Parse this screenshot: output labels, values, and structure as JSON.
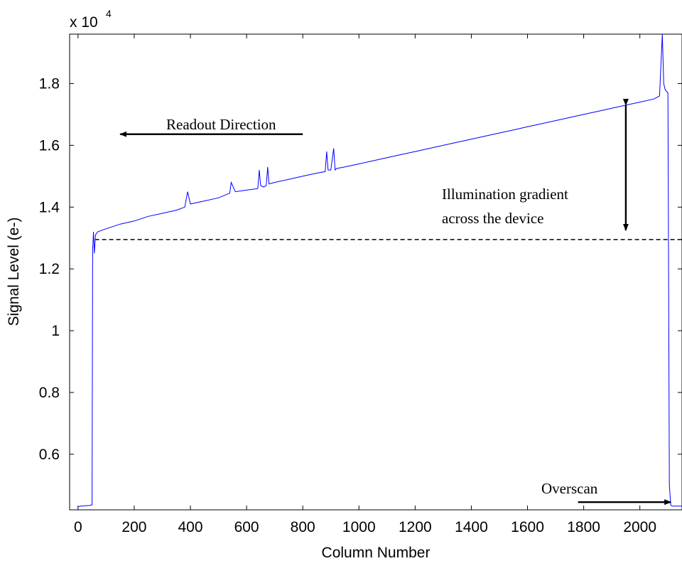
{
  "chart_data": {
    "type": "line",
    "title": "",
    "xlabel": "Column Number",
    "ylabel": "Signal Level (e-)",
    "exponent_label": {
      "base": "x 10",
      "power": "4"
    },
    "xlim": [
      -30,
      2150
    ],
    "ylim": [
      0.42,
      1.96
    ],
    "x_ticks": [
      0,
      200,
      400,
      600,
      800,
      1000,
      1200,
      1400,
      1600,
      1800,
      2000
    ],
    "x_tick_labels": [
      "0",
      "200",
      "400",
      "600",
      "800",
      "1000",
      "1200",
      "1400",
      "1600",
      "1800",
      "2000"
    ],
    "y_ticks": [
      0.6,
      0.8,
      1.0,
      1.2,
      1.4,
      1.6,
      1.8
    ],
    "y_tick_labels": [
      "0.6",
      "0.8",
      "1",
      "1.2",
      "1.4",
      "1.6",
      "1.8"
    ],
    "grid": false,
    "line_color": "#0000ff",
    "series": [
      {
        "color": "#0000ff",
        "x": [
          0,
          10,
          40,
          50,
          52,
          55,
          58,
          62,
          70,
          100,
          150,
          200,
          250,
          300,
          350,
          380,
          390,
          400,
          450,
          500,
          540,
          545,
          560,
          600,
          640,
          645,
          650,
          660,
          670,
          675,
          680,
          700,
          750,
          800,
          850,
          880,
          885,
          890,
          900,
          910,
          915,
          920,
          950,
          1000,
          1050,
          1100,
          1150,
          1200,
          1250,
          1300,
          1350,
          1400,
          1450,
          1500,
          1550,
          1600,
          1650,
          1700,
          1750,
          1800,
          1850,
          1900,
          1950,
          2000,
          2050,
          2070,
          2080,
          2085,
          2090,
          2100,
          2105,
          2110,
          2115,
          2130,
          2150
        ],
        "y": [
          0.43,
          0.432,
          0.434,
          0.436,
          1.26,
          1.32,
          1.25,
          1.31,
          1.32,
          1.33,
          1.345,
          1.355,
          1.37,
          1.38,
          1.39,
          1.4,
          1.45,
          1.41,
          1.42,
          1.43,
          1.445,
          1.48,
          1.45,
          1.455,
          1.46,
          1.52,
          1.47,
          1.465,
          1.47,
          1.53,
          1.475,
          1.48,
          1.49,
          1.5,
          1.51,
          1.515,
          1.58,
          1.52,
          1.52,
          1.59,
          1.52,
          1.525,
          1.53,
          1.54,
          1.55,
          1.56,
          1.57,
          1.58,
          1.59,
          1.6,
          1.61,
          1.62,
          1.63,
          1.64,
          1.65,
          1.66,
          1.67,
          1.68,
          1.69,
          1.7,
          1.71,
          1.72,
          1.73,
          1.74,
          1.75,
          1.76,
          1.96,
          1.8,
          1.78,
          1.77,
          0.5,
          0.435,
          0.432,
          0.432,
          0.432
        ]
      }
    ],
    "reference_line": {
      "y": 1.295,
      "x_start": 60,
      "x_end": 2150,
      "style": "dashed",
      "color": "#000000"
    },
    "annotations": [
      {
        "text": "Readout Direction",
        "arrow": {
          "x_from": 800,
          "x_to": 150,
          "y": 1.636
        }
      },
      {
        "text_lines": [
          "Illumination gradient",
          "across the device"
        ],
        "arrow": {
          "x": 1950,
          "y_from": 1.73,
          "y_to": 1.325,
          "double": true
        }
      },
      {
        "text": "Overscan",
        "arrow": {
          "x_from": 1780,
          "x_to": 2110,
          "y": 0.445
        }
      }
    ]
  }
}
